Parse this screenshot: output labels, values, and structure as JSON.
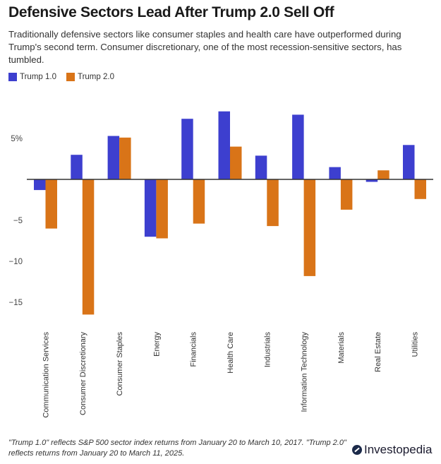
{
  "header": {
    "title": "Defensive Sectors Lead After Trump 2.0 Sell Off",
    "subtitle": "Traditionally defensive sectors like consumer staples and health care have outperformed during Trump's second term. Consumer discretionary, one of the most recession-sensitive sectors, has tumbled."
  },
  "legend": [
    {
      "label": "Trump 1.0",
      "color": "#3d3fcf"
    },
    {
      "label": "Trump 2.0",
      "color": "#d97418"
    }
  ],
  "footer": {
    "note": "\"Trump 1.0\" reflects S&P 500 sector index returns from January 20 to March 10, 2017. \"Trump 2.0\" reflects returns from January 20 to March 11, 2025.",
    "brand": "Investopedia"
  },
  "chart_data": {
    "type": "bar",
    "title": "Defensive Sectors Lead After Trump 2.0 Sell Off",
    "xlabel": "",
    "ylabel": "",
    "ylim": [
      -17,
      10
    ],
    "yticks": [
      {
        "value": 5,
        "label": "5%"
      },
      {
        "value": -5,
        "label": "−5"
      },
      {
        "value": -10,
        "label": "−10"
      },
      {
        "value": -15,
        "label": "−15"
      }
    ],
    "grid": false,
    "legend_position": "top-left",
    "categories": [
      "Communication Services",
      "Consumer Discretionary",
      "Consumer Staples",
      "Energy",
      "Financials",
      "Health Care",
      "Industrials",
      "Information Technology",
      "Materials",
      "Real Estate",
      "Utilities"
    ],
    "series": [
      {
        "name": "Trump 1.0",
        "color": "#3d3fcf",
        "values": [
          -1.3,
          3.0,
          5.3,
          -7.0,
          7.4,
          8.3,
          2.9,
          7.9,
          1.5,
          -0.3,
          4.2
        ]
      },
      {
        "name": "Trump 2.0",
        "color": "#d97418",
        "values": [
          -6.0,
          -16.5,
          5.1,
          -7.2,
          -5.4,
          4.0,
          -5.7,
          -11.8,
          -3.7,
          1.1,
          -2.4
        ]
      }
    ]
  }
}
